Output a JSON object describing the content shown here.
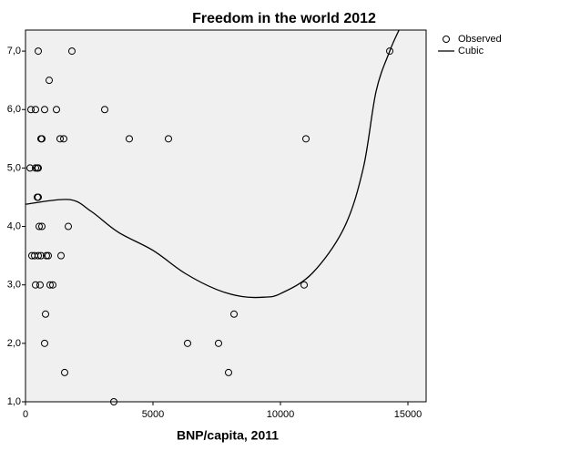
{
  "chart_data": {
    "type": "scatter",
    "title": "Freedom in the world 2012",
    "xlabel": "BNP/capita, 2011",
    "xlim": [
      0,
      15714
    ],
    "xticks": [
      0,
      5000,
      10000,
      15000
    ],
    "ylim": [
      1,
      7.36
    ],
    "yticks": [
      {
        "value": 1,
        "label": "1,0"
      },
      {
        "value": 2,
        "label": "2,0"
      },
      {
        "value": 3,
        "label": "3,0"
      },
      {
        "value": 4,
        "label": "4,0"
      },
      {
        "value": 5,
        "label": "5,0"
      },
      {
        "value": 6,
        "label": "6,0"
      },
      {
        "value": 7,
        "label": "7,0"
      }
    ],
    "series": [
      {
        "name": "Observed",
        "kind": "markers",
        "color": "#000000",
        "x": [
          500,
          1821,
          929,
          214,
          393,
          750,
          1214,
          3107,
          607,
          643,
          1357,
          1500,
          4071,
          5607,
          11000,
          179,
          393,
          464,
          500,
          464,
          500,
          536,
          643,
          1679,
          250,
          357,
          500,
          607,
          821,
          893,
          1393,
          393,
          571,
          964,
          1071,
          10929,
          786,
          8179,
          750,
          6357,
          7571,
          1536,
          7964,
          3464,
          14286
        ],
        "values": [
          7.0,
          7.0,
          6.5,
          6.0,
          6.0,
          6.0,
          6.0,
          6.0,
          5.5,
          5.5,
          5.5,
          5.5,
          5.5,
          5.5,
          5.5,
          5.0,
          5.0,
          5.0,
          5.0,
          4.5,
          4.5,
          4.0,
          4.0,
          4.0,
          3.5,
          3.5,
          3.5,
          3.5,
          3.5,
          3.5,
          3.5,
          3.0,
          3.0,
          3.0,
          3.0,
          3.0,
          2.5,
          2.5,
          2.0,
          2.0,
          2.0,
          1.5,
          1.5,
          1.0,
          7.0
        ]
      },
      {
        "name": "Cubic",
        "kind": "line",
        "color": "#000000",
        "x": [
          0,
          1700,
          2571,
          3643,
          5000,
          6250,
          7500,
          8500,
          9357,
          10000,
          11250,
          12500,
          13250,
          13750,
          14286,
          14650
        ],
        "values": [
          4.38,
          4.46,
          4.26,
          3.9,
          3.59,
          3.2,
          2.92,
          2.8,
          2.79,
          2.85,
          3.2,
          3.98,
          5.0,
          6.31,
          7.0,
          7.36
        ]
      }
    ]
  }
}
